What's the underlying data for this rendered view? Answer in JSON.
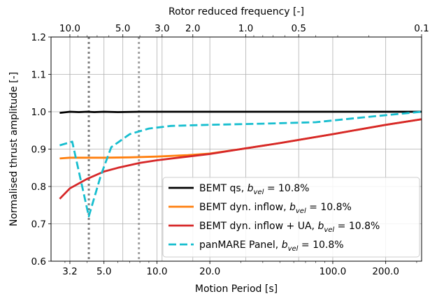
{
  "chart_data": {
    "type": "line",
    "x_scale": "log",
    "xlabel": "Motion Period [s]",
    "ylabel": "Normalised thrust amplitude [-]",
    "top_xlabel": "Rotor reduced frequency [-]",
    "xlim": [
      2.5,
      320
    ],
    "ylim": [
      0.6,
      1.2
    ],
    "grid": true,
    "legend_position": "lower-right",
    "x_ticks": [
      {
        "value": 3.2,
        "label": "3.2"
      },
      {
        "value": 5.0,
        "label": "5.0"
      },
      {
        "value": 10.0,
        "label": "10.0"
      },
      {
        "value": 20.0,
        "label": "20.0"
      },
      {
        "value": 100.0,
        "label": "100.0"
      },
      {
        "value": 200.0,
        "label": "200.0"
      }
    ],
    "y_ticks": [
      {
        "value": 0.6,
        "label": "0.6"
      },
      {
        "value": 0.7,
        "label": "0.7"
      },
      {
        "value": 0.8,
        "label": "0.8"
      },
      {
        "value": 0.9,
        "label": "0.9"
      },
      {
        "value": 1.0,
        "label": "1.0"
      },
      {
        "value": 1.1,
        "label": "1.1"
      },
      {
        "value": 1.2,
        "label": "1.2"
      }
    ],
    "top_ticks": [
      {
        "period": 3.2,
        "label": "10.0"
      },
      {
        "period": 6.4,
        "label": "5.0"
      },
      {
        "period": 10.7,
        "label": "3.0"
      },
      {
        "period": 16.0,
        "label": "2.0"
      },
      {
        "period": 32.0,
        "label": "1.0"
      },
      {
        "period": 64.0,
        "label": "0.5"
      },
      {
        "period": 320.0,
        "label": "0.1"
      }
    ],
    "vertical_markers": [
      {
        "x": 4.1,
        "color": "#7f7f7f"
      },
      {
        "x": 7.9,
        "color": "#a0a0a0"
      }
    ],
    "series": [
      {
        "name": "BEMT qs, b_vel = 10.8%",
        "color": "#000000",
        "dash": "solid",
        "x": [
          2.8,
          3.2,
          3.6,
          4.0,
          4.4,
          5.0,
          6.0,
          8.0,
          10.0,
          20.0,
          50.0,
          100.0,
          200.0,
          320.0
        ],
        "y": [
          0.997,
          1.0,
          0.999,
          1.0,
          0.999,
          1.0,
          0.999,
          1.0,
          1.0,
          1.0,
          1.0,
          1.0,
          1.0,
          1.0
        ]
      },
      {
        "name": "BEMT dyn. inflow, b_vel = 10.8%",
        "color": "#ff7f0e",
        "dash": "solid",
        "x": [
          2.8,
          3.2,
          4.0,
          5.0,
          7.0,
          10.0,
          15.0,
          20.0,
          30.0,
          50.0,
          100.0,
          200.0,
          320.0
        ],
        "y": [
          0.875,
          0.877,
          0.877,
          0.877,
          0.878,
          0.88,
          0.884,
          0.888,
          0.9,
          0.916,
          0.94,
          0.965,
          0.98
        ]
      },
      {
        "name": "BEMT dyn. inflow + UA, b_vel = 10.8%",
        "color": "#d62728",
        "dash": "solid",
        "x": [
          2.8,
          3.2,
          4.0,
          5.0,
          6.0,
          8.0,
          10.0,
          15.0,
          20.0,
          30.0,
          50.0,
          100.0,
          200.0,
          320.0
        ],
        "y": [
          0.767,
          0.795,
          0.82,
          0.84,
          0.85,
          0.863,
          0.87,
          0.88,
          0.887,
          0.9,
          0.916,
          0.94,
          0.965,
          0.98
        ]
      },
      {
        "name": "panMARE Panel, b_vel = 10.8%",
        "color": "#17becf",
        "dash": "dashed",
        "x": [
          2.8,
          3.3,
          4.1,
          4.8,
          5.5,
          7.0,
          9.0,
          12.0,
          20.0,
          40.0,
          80.0,
          150.0,
          320.0
        ],
        "y": [
          0.91,
          0.92,
          0.72,
          0.83,
          0.905,
          0.94,
          0.955,
          0.962,
          0.965,
          0.968,
          0.972,
          0.985,
          1.0
        ]
      }
    ],
    "legend": [
      {
        "base": "BEMT qs, ",
        "var": "b",
        "sub": "vel",
        "tail": " = 10.8%"
      },
      {
        "base": "BEMT dyn. inflow, ",
        "var": "b",
        "sub": "vel",
        "tail": " = 10.8%"
      },
      {
        "base": "BEMT dyn. inflow + UA, ",
        "var": "b",
        "sub": "vel",
        "tail": " = 10.8%"
      },
      {
        "base": "panMARE Panel, ",
        "var": "b",
        "sub": "vel",
        "tail": " = 10.8%"
      }
    ]
  }
}
